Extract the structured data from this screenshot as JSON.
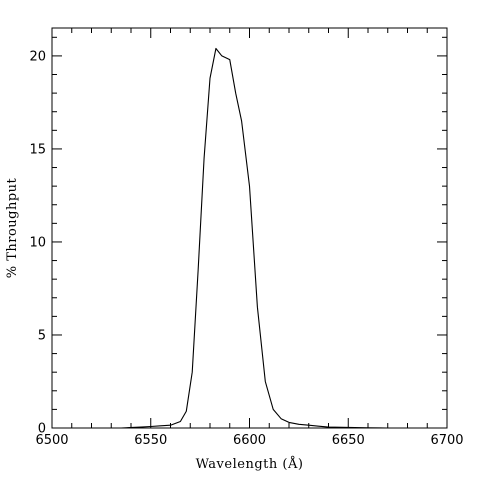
{
  "chart_data": {
    "type": "line",
    "title": "",
    "xlabel": "Wavelength (Å)",
    "ylabel": "% Throughput",
    "xlim": [
      6500,
      6700
    ],
    "ylim": [
      0,
      21.5
    ],
    "x_ticks": [
      6500,
      6550,
      6600,
      6650,
      6700
    ],
    "y_ticks": [
      0,
      5,
      10,
      15,
      20
    ],
    "x_minor_step": 10,
    "y_minor_step": 1,
    "grid": false,
    "series": [
      {
        "color": "#000000",
        "x": [
          6535,
          6545,
          6550,
          6555,
          6560,
          6565,
          6568,
          6571,
          6574,
          6577,
          6580,
          6583,
          6586,
          6590,
          6593,
          6596,
          6600,
          6604,
          6608,
          6612,
          6616,
          6620,
          6625,
          6630,
          6635,
          6640,
          6650,
          6660,
          6670
        ],
        "y": [
          0.0,
          0.05,
          0.08,
          0.12,
          0.15,
          0.35,
          0.9,
          3.0,
          8.5,
          14.5,
          18.8,
          20.4,
          20.0,
          19.8,
          18.0,
          16.5,
          13.0,
          6.5,
          2.5,
          1.0,
          0.5,
          0.3,
          0.2,
          0.15,
          0.1,
          0.05,
          0.03,
          0.01,
          0.0
        ]
      }
    ]
  }
}
